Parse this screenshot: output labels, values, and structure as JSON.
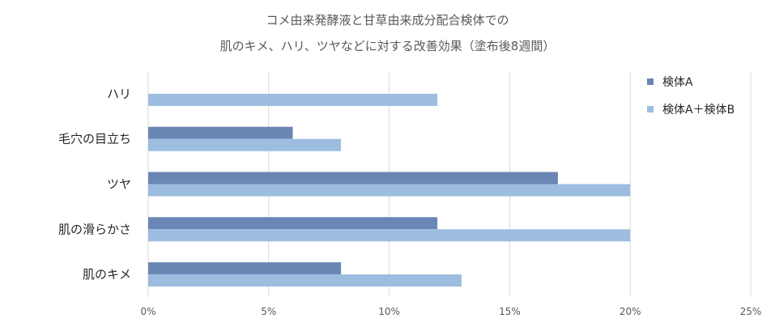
{
  "chart_data": {
    "type": "bar",
    "orientation": "horizontal",
    "title": "コメ由来発酵液と甘草由来成分配合検体での",
    "subtitle": "肌のキメ、ハリ、ツヤなどに対する改善効果（塗布後8週間）",
    "categories": [
      "ハリ",
      "毛穴の目立ち",
      "ツヤ",
      "肌の滑らかさ",
      "肌のキメ"
    ],
    "series": [
      {
        "name": "検体A",
        "color": "#6a86b4",
        "values": [
          null,
          6,
          17,
          12,
          8
        ]
      },
      {
        "name": "検体A＋検体B",
        "color": "#9dbde0",
        "values": [
          12,
          8,
          20,
          20,
          13
        ]
      }
    ],
    "xlim": [
      0,
      25
    ],
    "xticks": [
      "0%",
      "5%",
      "10%",
      "15%",
      "20%",
      "25%"
    ],
    "grid": true,
    "legend_position": "right"
  }
}
